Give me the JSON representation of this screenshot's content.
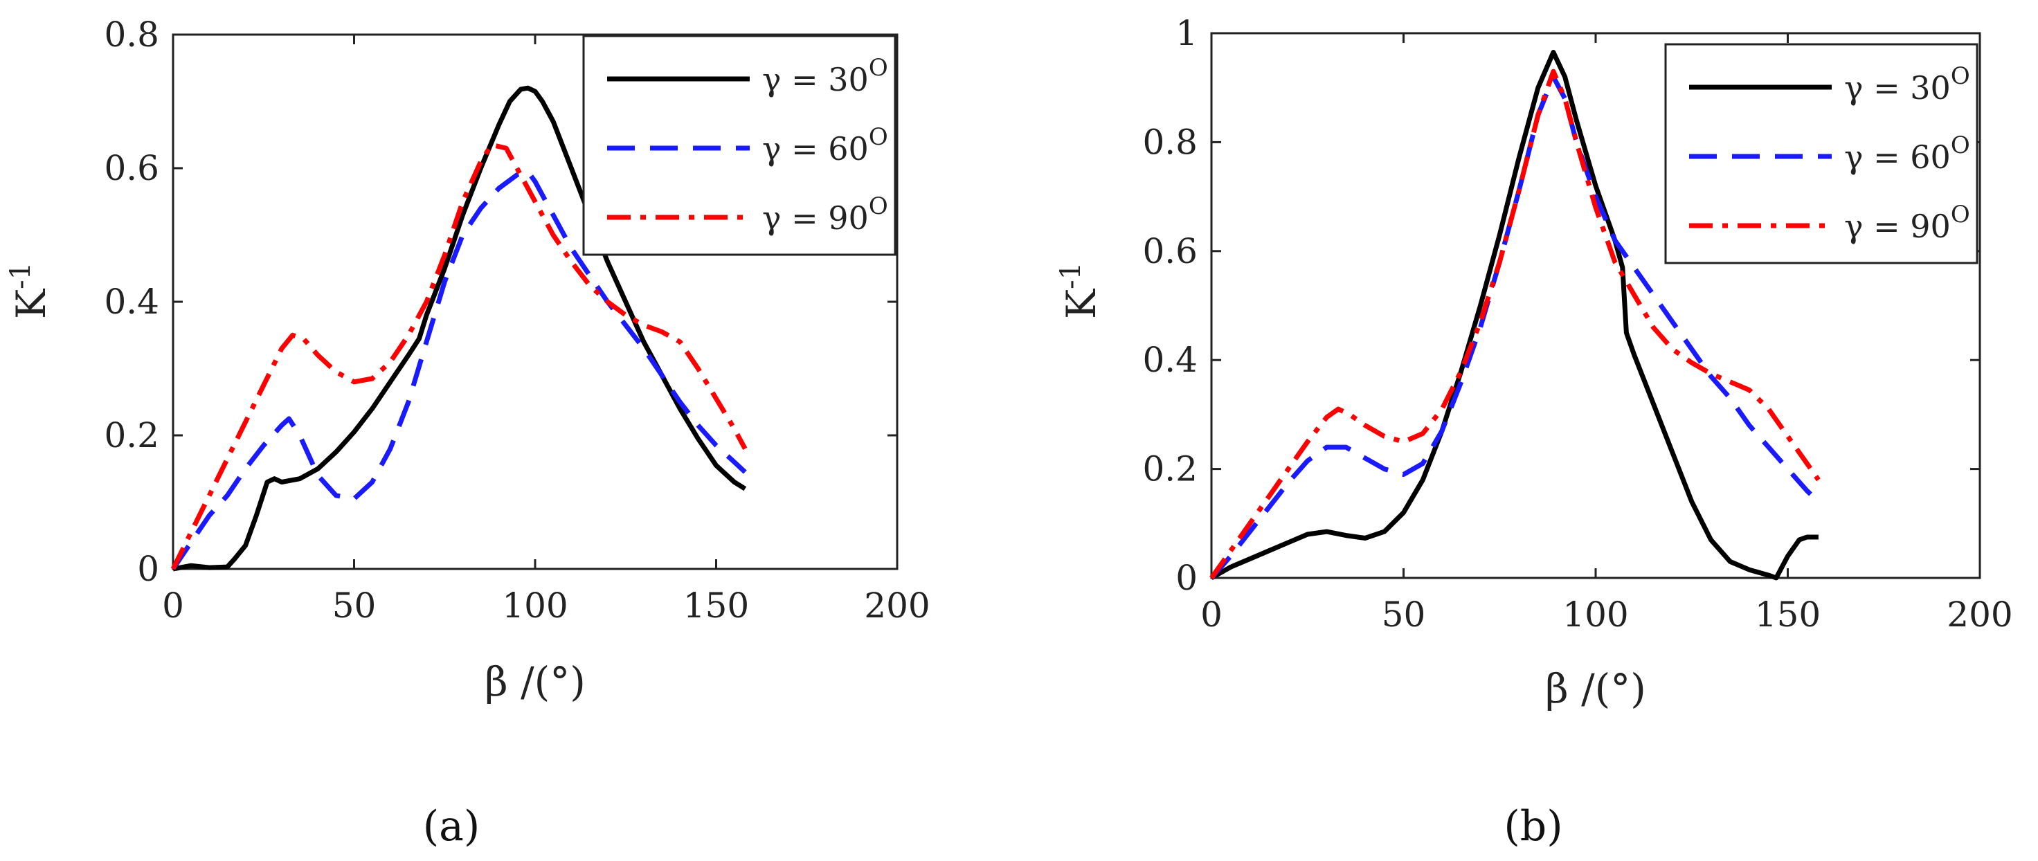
{
  "figure": {
    "panel_labels": [
      "(a)",
      "(b)"
    ]
  },
  "chart_data": [
    {
      "type": "line",
      "id": "a",
      "xlabel": "β /(°)",
      "ylabel": "K-1",
      "xlim": [
        0,
        200
      ],
      "ylim": [
        0,
        0.8
      ],
      "xticks": [
        0,
        50,
        100,
        150,
        200
      ],
      "yticks": [
        0,
        0.2,
        0.4,
        0.6,
        0.8
      ],
      "xtick_labels": [
        "0",
        "50",
        "100",
        "150",
        "200"
      ],
      "ytick_labels": [
        "0",
        "0.2",
        "0.4",
        "0.6",
        "0.8"
      ],
      "grid": false,
      "legend_position": "top-right",
      "series": [
        {
          "name": "γ = 30O",
          "color": "#000000",
          "style": "solid",
          "x": [
            0,
            5,
            10,
            15,
            17,
            20,
            23,
            26,
            28,
            30,
            35,
            40,
            45,
            50,
            55,
            60,
            65,
            68,
            70,
            75,
            80,
            85,
            90,
            93,
            96,
            98,
            100,
            102,
            105,
            110,
            115,
            120,
            125,
            130,
            135,
            140,
            145,
            150,
            155,
            158
          ],
          "y": [
            0,
            0.005,
            0.002,
            0.003,
            0.015,
            0.035,
            0.08,
            0.13,
            0.135,
            0.13,
            0.135,
            0.15,
            0.175,
            0.205,
            0.24,
            0.28,
            0.32,
            0.345,
            0.38,
            0.45,
            0.53,
            0.6,
            0.665,
            0.7,
            0.718,
            0.72,
            0.715,
            0.7,
            0.67,
            0.6,
            0.53,
            0.46,
            0.4,
            0.34,
            0.29,
            0.24,
            0.195,
            0.155,
            0.13,
            0.12
          ]
        },
        {
          "name": "γ = 60O",
          "color": "#1a1aff",
          "style": "dashed",
          "x": [
            0,
            5,
            10,
            15,
            20,
            25,
            30,
            32,
            35,
            40,
            45,
            50,
            55,
            60,
            65,
            70,
            75,
            80,
            85,
            90,
            95,
            98,
            100,
            105,
            110,
            115,
            120,
            125,
            130,
            135,
            140,
            145,
            150,
            155,
            158
          ],
          "y": [
            0,
            0.04,
            0.08,
            0.11,
            0.15,
            0.185,
            0.215,
            0.225,
            0.2,
            0.14,
            0.11,
            0.105,
            0.13,
            0.18,
            0.25,
            0.34,
            0.43,
            0.5,
            0.54,
            0.57,
            0.59,
            0.595,
            0.58,
            0.53,
            0.48,
            0.44,
            0.4,
            0.365,
            0.33,
            0.29,
            0.25,
            0.215,
            0.185,
            0.16,
            0.145
          ]
        },
        {
          "name": "γ = 90O",
          "color": "#ff0000",
          "style": "dashdot",
          "x": [
            0,
            5,
            10,
            15,
            20,
            25,
            30,
            33,
            36,
            40,
            45,
            50,
            55,
            60,
            65,
            70,
            75,
            80,
            85,
            88,
            92,
            95,
            100,
            105,
            110,
            115,
            120,
            125,
            130,
            135,
            140,
            145,
            150,
            155,
            158
          ],
          "y": [
            0,
            0.055,
            0.11,
            0.165,
            0.22,
            0.275,
            0.33,
            0.35,
            0.345,
            0.32,
            0.295,
            0.28,
            0.285,
            0.31,
            0.35,
            0.4,
            0.47,
            0.55,
            0.61,
            0.635,
            0.63,
            0.6,
            0.55,
            0.5,
            0.46,
            0.425,
            0.4,
            0.38,
            0.365,
            0.355,
            0.34,
            0.3,
            0.255,
            0.21,
            0.18
          ]
        }
      ]
    },
    {
      "type": "line",
      "id": "b",
      "xlabel": "β /(°)",
      "ylabel": "K-1",
      "xlim": [
        0,
        200
      ],
      "ylim": [
        0,
        1
      ],
      "xticks": [
        0,
        50,
        100,
        150,
        200
      ],
      "yticks": [
        0,
        0.2,
        0.4,
        0.6,
        0.8,
        1
      ],
      "xtick_labels": [
        "0",
        "50",
        "100",
        "150",
        "200"
      ],
      "ytick_labels": [
        "0",
        "0.2",
        "0.4",
        "0.6",
        "0.8",
        "1"
      ],
      "grid": false,
      "legend_position": "top-right",
      "series": [
        {
          "name": "γ = 30O",
          "color": "#000000",
          "style": "solid",
          "x": [
            0,
            5,
            10,
            15,
            20,
            25,
            30,
            35,
            40,
            45,
            50,
            55,
            60,
            65,
            70,
            75,
            80,
            85,
            89,
            92,
            95,
            100,
            105,
            107,
            108,
            110,
            115,
            120,
            125,
            130,
            135,
            140,
            145,
            147,
            150,
            153,
            155,
            158
          ],
          "y": [
            0,
            0.02,
            0.035,
            0.05,
            0.065,
            0.08,
            0.085,
            0.078,
            0.073,
            0.085,
            0.12,
            0.18,
            0.27,
            0.38,
            0.5,
            0.63,
            0.77,
            0.9,
            0.965,
            0.92,
            0.84,
            0.72,
            0.62,
            0.57,
            0.45,
            0.41,
            0.32,
            0.23,
            0.14,
            0.07,
            0.03,
            0.015,
            0.005,
            0.0,
            0.04,
            0.07,
            0.075,
            0.075
          ]
        },
        {
          "name": "γ = 60O",
          "color": "#1a1aff",
          "style": "dashed",
          "x": [
            0,
            5,
            10,
            15,
            20,
            25,
            30,
            35,
            40,
            45,
            50,
            55,
            60,
            65,
            70,
            75,
            80,
            85,
            89,
            92,
            95,
            100,
            105,
            110,
            115,
            120,
            125,
            130,
            135,
            140,
            145,
            150,
            155,
            158
          ],
          "y": [
            0,
            0.04,
            0.085,
            0.13,
            0.175,
            0.215,
            0.24,
            0.24,
            0.22,
            0.2,
            0.19,
            0.21,
            0.27,
            0.36,
            0.46,
            0.58,
            0.71,
            0.85,
            0.92,
            0.88,
            0.8,
            0.7,
            0.62,
            0.57,
            0.52,
            0.47,
            0.42,
            0.37,
            0.33,
            0.28,
            0.24,
            0.2,
            0.16,
            0.14
          ]
        },
        {
          "name": "γ = 90O",
          "color": "#ff0000",
          "style": "dashdot",
          "x": [
            0,
            5,
            10,
            15,
            20,
            25,
            30,
            33,
            36,
            40,
            45,
            50,
            55,
            60,
            65,
            70,
            75,
            80,
            85,
            89,
            92,
            95,
            100,
            105,
            110,
            115,
            120,
            125,
            130,
            135,
            140,
            145,
            150,
            155,
            158
          ],
          "y": [
            0,
            0.05,
            0.1,
            0.15,
            0.2,
            0.25,
            0.295,
            0.31,
            0.3,
            0.28,
            0.26,
            0.25,
            0.265,
            0.31,
            0.38,
            0.47,
            0.58,
            0.71,
            0.85,
            0.93,
            0.88,
            0.8,
            0.68,
            0.58,
            0.52,
            0.46,
            0.42,
            0.395,
            0.375,
            0.36,
            0.345,
            0.31,
            0.26,
            0.21,
            0.18
          ]
        }
      ]
    }
  ]
}
